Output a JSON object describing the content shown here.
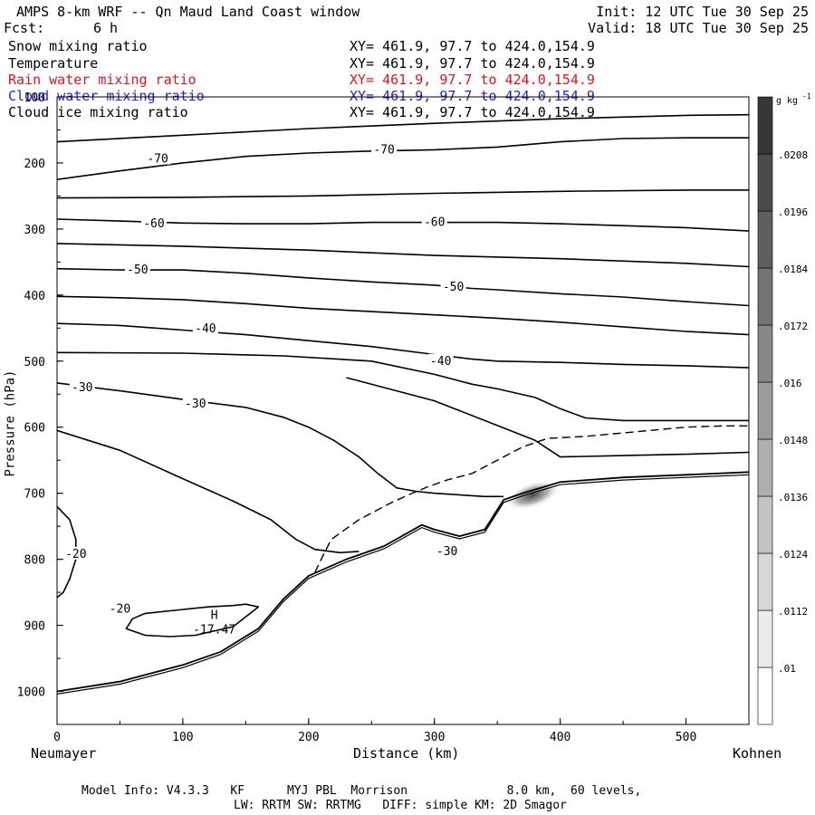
{
  "header": {
    "title": "AMPS 8-km WRF -- Qn Maud Land Coast window",
    "init": "Init: 12 UTC Tue 30 Sep 25",
    "fcst_label": "Fcst:",
    "fcst_value": "6 h",
    "valid": "Valid: 18 UTC Tue 30 Sep 25"
  },
  "legend": [
    {
      "name": "Snow mixing ratio",
      "xy": "XY= 461.9, 97.7 to 424.0,154.9",
      "color": "#000000"
    },
    {
      "name": "Temperature",
      "xy": "XY= 461.9, 97.7 to 424.0,154.9",
      "color": "#000000"
    },
    {
      "name": "Rain water mixing ratio",
      "xy": "XY= 461.9, 97.7 to 424.0,154.9",
      "color": "#e8111d"
    },
    {
      "name": "Cloud water mixing ratio",
      "xy": "XY= 461.9, 97.7 to 424.0,154.9",
      "color": "#2323d4"
    },
    {
      "name": "Cloud ice mixing ratio",
      "xy": "XY= 461.9, 97.7 to 424.0,154.9",
      "color": "#000000"
    }
  ],
  "chart_data": {
    "type": "cross-section",
    "title": "AMPS 8-km WRF -- Qn Maud Land Coast window",
    "xlabel": "Distance (km)",
    "ylabel": "Pressure (hPa)",
    "xlim": [
      0,
      550
    ],
    "ylim": [
      1050,
      100
    ],
    "x_ticks": [
      0,
      100,
      200,
      300,
      400,
      500
    ],
    "y_ticks": [
      100,
      200,
      300,
      400,
      500,
      600,
      700,
      800,
      900,
      1000
    ],
    "x_endpoints": {
      "left": "Neumayer",
      "right": "Kohnen"
    },
    "colorbar": {
      "unit_text": "g kg",
      "unit_exp": "-1",
      "levels": [
        0.01,
        0.0112,
        0.0124,
        0.0136,
        0.0148,
        0.016,
        0.0172,
        0.0184,
        0.0196,
        0.0208
      ],
      "labels": [
        ".01",
        ".0112",
        ".0124",
        ".0136",
        ".0148",
        ".016",
        ".0172",
        ".0184",
        ".0196",
        ".0208"
      ]
    },
    "terrain": [
      [
        0,
        1000
      ],
      [
        50,
        985
      ],
      [
        100,
        960
      ],
      [
        130,
        940
      ],
      [
        160,
        905
      ],
      [
        180,
        860
      ],
      [
        200,
        825
      ],
      [
        230,
        800
      ],
      [
        260,
        780
      ],
      [
        290,
        748
      ],
      [
        300,
        755
      ],
      [
        320,
        765
      ],
      [
        340,
        755
      ],
      [
        355,
        710
      ],
      [
        370,
        700
      ],
      [
        400,
        683
      ],
      [
        450,
        676
      ],
      [
        500,
        672
      ],
      [
        550,
        668
      ]
    ],
    "isotherms": [
      {
        "label": "-70",
        "points": [
          [
            0,
            225
          ],
          [
            50,
            212
          ],
          [
            100,
            200
          ],
          [
            150,
            190
          ],
          [
            200,
            185
          ],
          [
            250,
            182
          ],
          [
            300,
            180
          ],
          [
            350,
            176
          ],
          [
            400,
            168
          ],
          [
            450,
            163
          ],
          [
            500,
            162
          ],
          [
            550,
            162
          ]
        ],
        "label_positions": [
          [
            80,
            194
          ],
          [
            260,
            180
          ]
        ]
      },
      {
        "label": "",
        "points": [
          [
            0,
            168
          ],
          [
            100,
            158
          ],
          [
            200,
            148
          ],
          [
            300,
            140
          ],
          [
            400,
            133
          ],
          [
            500,
            128
          ],
          [
            550,
            127
          ]
        ],
        "label_positions": []
      },
      {
        "label": "",
        "points": [
          [
            0,
            253
          ],
          [
            100,
            252
          ],
          [
            200,
            250
          ],
          [
            300,
            246
          ],
          [
            400,
            243
          ],
          [
            500,
            241
          ],
          [
            550,
            241
          ]
        ],
        "label_positions": []
      },
      {
        "label": "-60",
        "points": [
          [
            0,
            285
          ],
          [
            50,
            288
          ],
          [
            100,
            291
          ],
          [
            150,
            292
          ],
          [
            200,
            292
          ],
          [
            250,
            290
          ],
          [
            300,
            290
          ],
          [
            350,
            290
          ],
          [
            400,
            292
          ],
          [
            450,
            295
          ],
          [
            500,
            298
          ],
          [
            550,
            303
          ]
        ],
        "label_positions": [
          [
            77,
            292
          ],
          [
            300,
            290
          ]
        ]
      },
      {
        "label": "",
        "points": [
          [
            0,
            322
          ],
          [
            100,
            326
          ],
          [
            200,
            332
          ],
          [
            300,
            340
          ],
          [
            400,
            345
          ],
          [
            500,
            352
          ],
          [
            550,
            357
          ]
        ],
        "label_positions": []
      },
      {
        "label": "-50",
        "points": [
          [
            0,
            360
          ],
          [
            50,
            362
          ],
          [
            100,
            362
          ],
          [
            150,
            367
          ],
          [
            200,
            374
          ],
          [
            250,
            380
          ],
          [
            300,
            385
          ],
          [
            330,
            390
          ],
          [
            350,
            392
          ],
          [
            400,
            398
          ],
          [
            450,
            403
          ],
          [
            500,
            410
          ],
          [
            550,
            416
          ]
        ],
        "label_positions": [
          [
            64,
            362
          ],
          [
            315,
            388
          ]
        ]
      },
      {
        "label": "",
        "points": [
          [
            0,
            402
          ],
          [
            50,
            404
          ],
          [
            100,
            407
          ],
          [
            150,
            413
          ],
          [
            200,
            420
          ],
          [
            250,
            425
          ],
          [
            300,
            430
          ],
          [
            350,
            435
          ],
          [
            400,
            441
          ],
          [
            450,
            448
          ],
          [
            500,
            455
          ],
          [
            550,
            460
          ]
        ],
        "label_positions": []
      },
      {
        "label": "-40",
        "points": [
          [
            0,
            443
          ],
          [
            50,
            446
          ],
          [
            100,
            453
          ],
          [
            150,
            460
          ],
          [
            200,
            469
          ],
          [
            250,
            478
          ],
          [
            300,
            490
          ],
          [
            330,
            497
          ],
          [
            350,
            500
          ],
          [
            400,
            502
          ],
          [
            450,
            505
          ],
          [
            500,
            507
          ],
          [
            550,
            510
          ]
        ],
        "label_positions": [
          [
            118,
            451
          ],
          [
            305,
            500
          ]
        ]
      },
      {
        "label": "-30",
        "points": [
          [
            0,
            533
          ],
          [
            50,
            545
          ],
          [
            100,
            558
          ],
          [
            150,
            570
          ],
          [
            180,
            585
          ],
          [
            200,
            600
          ],
          [
            220,
            620
          ],
          [
            240,
            645
          ],
          [
            255,
            670
          ],
          [
            270,
            692
          ],
          [
            285,
            697
          ],
          [
            300,
            700
          ],
          [
            340,
            705
          ],
          [
            355,
            705
          ]
        ],
        "label_positions": [
          [
            20,
            540
          ],
          [
            110,
            565
          ]
        ]
      },
      {
        "label": "",
        "points": [
          [
            0,
            487
          ],
          [
            100,
            488
          ],
          [
            180,
            492
          ],
          [
            250,
            500
          ],
          [
            300,
            520
          ],
          [
            330,
            535
          ],
          [
            350,
            542
          ],
          [
            380,
            555
          ],
          [
            400,
            572
          ],
          [
            420,
            586
          ],
          [
            450,
            590
          ],
          [
            500,
            590
          ],
          [
            550,
            590
          ]
        ],
        "label_positions": []
      },
      {
        "label": "",
        "points": [
          [
            230,
            525
          ],
          [
            300,
            560
          ],
          [
            340,
            590
          ],
          [
            380,
            620
          ],
          [
            400,
            645
          ],
          [
            450,
            643
          ],
          [
            500,
            641
          ],
          [
            550,
            638
          ]
        ],
        "label_positions": []
      },
      {
        "label": "",
        "points": [
          [
            0,
            605
          ],
          [
            50,
            635
          ],
          [
            100,
            678
          ],
          [
            140,
            712
          ],
          [
            170,
            740
          ],
          [
            190,
            770
          ],
          [
            205,
            785
          ],
          [
            225,
            790
          ],
          [
            240,
            788
          ]
        ],
        "label_positions": []
      },
      {
        "label": "-20",
        "points": [
          [
            0,
            720
          ],
          [
            10,
            740
          ],
          [
            15,
            770
          ],
          [
            15,
            800
          ],
          [
            10,
            830
          ],
          [
            5,
            850
          ],
          [
            0,
            858
          ]
        ],
        "label_positions": [
          [
            15,
            792
          ]
        ]
      },
      {
        "label": "-20",
        "points": [
          [
            60,
            890
          ],
          [
            70,
            882
          ],
          [
            90,
            878
          ],
          [
            120,
            872
          ],
          [
            140,
            870
          ],
          [
            150,
            868
          ],
          [
            160,
            872
          ],
          [
            140,
            902
          ],
          [
            110,
            915
          ],
          [
            90,
            917
          ],
          [
            70,
            915
          ],
          [
            55,
            905
          ],
          [
            60,
            890
          ]
        ],
        "label_positions": [
          [
            50,
            875
          ]
        ]
      },
      {
        "label": "-30",
        "points": [
          [
            290,
            748
          ],
          [
            300,
            755
          ]
        ],
        "label_positions": [
          [
            310,
            788
          ]
        ]
      }
    ],
    "dashed_contour": {
      "points": [
        [
          205,
          820
        ],
        [
          210,
          800
        ],
        [
          218,
          770
        ],
        [
          240,
          740
        ],
        [
          265,
          715
        ],
        [
          280,
          702
        ],
        [
          295,
          690
        ],
        [
          310,
          680
        ],
        [
          330,
          670
        ],
        [
          350,
          650
        ],
        [
          370,
          630
        ],
        [
          390,
          617
        ],
        [
          420,
          614
        ],
        [
          460,
          607
        ],
        [
          500,
          600
        ],
        [
          530,
          598
        ],
        [
          550,
          598
        ]
      ]
    },
    "annotations": [
      {
        "text": "H",
        "x": 125,
        "y": 890
      },
      {
        "text": "-17.47",
        "x": 125,
        "y": 912
      }
    ],
    "shaded_region": {
      "center": [
        378,
        703
      ],
      "max_value": 0.0172
    }
  },
  "footer": {
    "line1": "Model Info: V4.3.3   KF      MYJ PBL  Morrison              8.0 km,  60 levels,",
    "line2": "LW: RRTM SW: RRTMG   DIFF: simple KM: 2D Smagor"
  }
}
